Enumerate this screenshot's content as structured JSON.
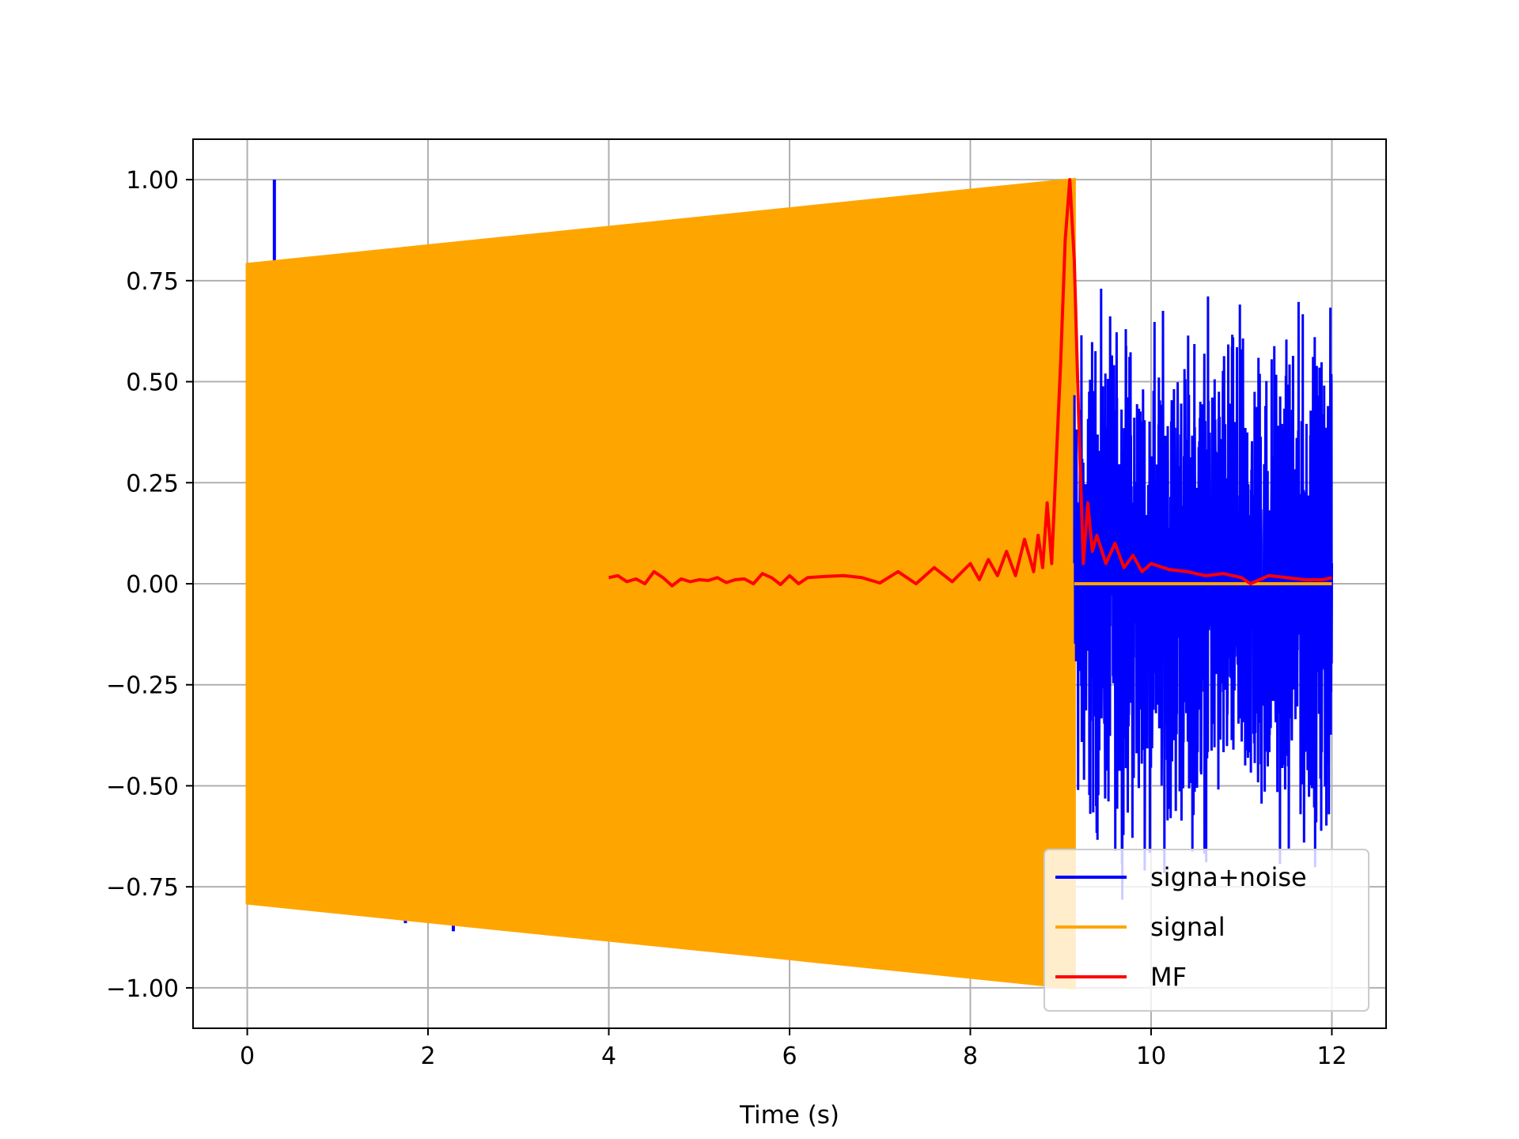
{
  "chart_data": {
    "type": "line",
    "title": "",
    "xlabel": "Time (s)",
    "ylabel": "",
    "xlim": [
      -0.6,
      12.6
    ],
    "ylim": [
      -1.1,
      1.1
    ],
    "grid": true,
    "legend": "lower-right",
    "xticks": [
      0,
      2,
      4,
      6,
      8,
      10,
      12
    ],
    "yticks": [
      1.0,
      0.75,
      0.5,
      0.25,
      0.0,
      -0.25,
      -0.5,
      -0.75,
      -1.0
    ],
    "xtick_labels": [
      "0",
      "2",
      "4",
      "6",
      "8",
      "10",
      "12"
    ],
    "ytick_labels": [
      "1.00",
      "0.75",
      "0.50",
      "0.25",
      "0.00",
      "−0.25",
      "−0.50",
      "−0.75",
      "−1.00"
    ],
    "series": [
      {
        "name": "signa+noise",
        "color": "#0000ff",
        "description_of_shape": "noisy trace overlapping the signal from 0 to 9.15 s, then pure noise from 9.15 to 12 s",
        "spikes": [
          {
            "x": 0.3,
            "y": 1.0
          },
          {
            "x": 1.75,
            "y": -0.84
          },
          {
            "x": 2.28,
            "y": -0.86
          }
        ],
        "noise_x_range": [
          9.15,
          12.0
        ],
        "noise_amplitude_range": [
          -0.83,
          0.73
        ]
      },
      {
        "name": "signal",
        "color": "#ffa500",
        "description_of_shape": "oscillating chirp with envelope growing linearly, zero after 9.15 s",
        "x_range": [
          0,
          12.0
        ],
        "envelope": [
          {
            "x": 0.0,
            "y": 0.79
          },
          {
            "x": 9.15,
            "y": 1.0
          }
        ],
        "end_x": 9.15,
        "after_end_value": 0.0
      },
      {
        "name": "MF",
        "color": "#ff0000",
        "description_of_shape": "matched filter output, small ripples, sharp peak of 1.0 at about 9.1 s",
        "x": [
          4.0,
          4.1,
          4.2,
          4.3,
          4.4,
          4.5,
          4.6,
          4.7,
          4.8,
          4.9,
          5.0,
          5.1,
          5.2,
          5.3,
          5.4,
          5.5,
          5.6,
          5.7,
          5.8,
          5.9,
          6.0,
          6.1,
          6.2,
          6.4,
          6.6,
          6.8,
          7.0,
          7.2,
          7.4,
          7.6,
          7.8,
          8.0,
          8.1,
          8.2,
          8.3,
          8.4,
          8.5,
          8.6,
          8.7,
          8.75,
          8.8,
          8.85,
          8.9,
          8.95,
          9.0,
          9.05,
          9.1,
          9.15,
          9.2,
          9.25,
          9.3,
          9.35,
          9.4,
          9.5,
          9.6,
          9.7,
          9.8,
          9.9,
          10.0,
          10.2,
          10.4,
          10.6,
          10.8,
          11.0,
          11.1,
          11.3,
          11.5,
          11.7,
          11.9,
          12.0
        ],
        "y": [
          0.015,
          0.02,
          0.005,
          0.012,
          0.0,
          0.03,
          0.015,
          -0.005,
          0.012,
          0.005,
          0.01,
          0.008,
          0.015,
          0.003,
          0.01,
          0.012,
          0.0,
          0.025,
          0.015,
          -0.002,
          0.02,
          0.0,
          0.015,
          0.018,
          0.02,
          0.015,
          0.002,
          0.03,
          0.0,
          0.04,
          0.005,
          0.05,
          0.01,
          0.06,
          0.02,
          0.08,
          0.02,
          0.11,
          0.03,
          0.12,
          0.04,
          0.2,
          0.05,
          0.3,
          0.55,
          0.85,
          1.0,
          0.8,
          0.4,
          0.05,
          0.2,
          0.08,
          0.12,
          0.05,
          0.1,
          0.04,
          0.07,
          0.03,
          0.05,
          0.035,
          0.03,
          0.02,
          0.025,
          0.015,
          0.0,
          0.02,
          0.015,
          0.01,
          0.01,
          0.015
        ]
      }
    ]
  }
}
